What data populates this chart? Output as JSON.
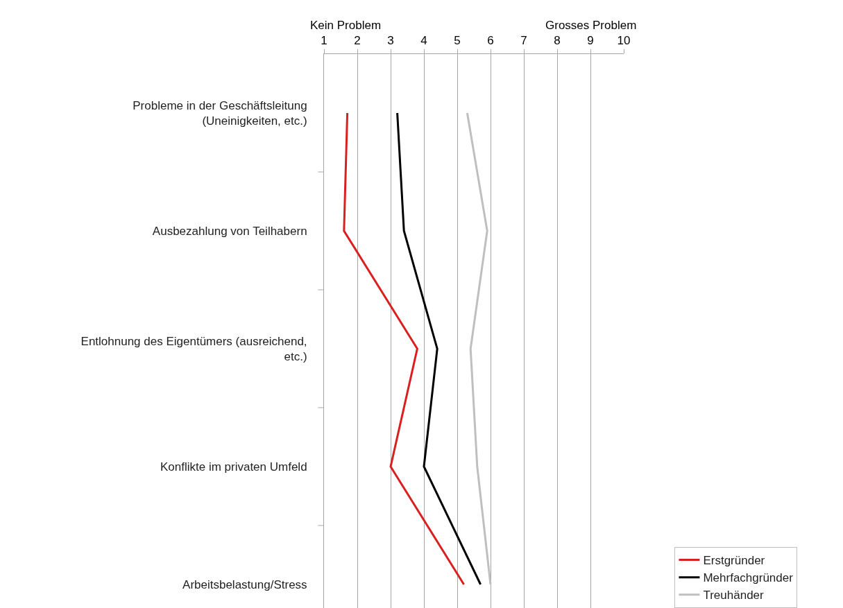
{
  "chart_data": {
    "type": "line",
    "orientation": "horizontal",
    "categories": [
      "Probleme in der Geschäftsleitung (Uneinigkeiten, etc.)",
      "Ausbezahlung von Teilhabern",
      "Entlohnung des Eigentümers (ausreichend, etc.)",
      "Konflikte im privaten Umfeld",
      "Arbeitsbelastung/Stress"
    ],
    "series": [
      {
        "name": "Erstgründer",
        "color": "#d9201f",
        "values": [
          1.7,
          1.6,
          3.8,
          3.0,
          5.2
        ]
      },
      {
        "name": "Mehrfachgründer",
        "color": "#000000",
        "values": [
          3.2,
          3.4,
          4.4,
          4.0,
          5.7
        ]
      },
      {
        "name": "Treuhänder",
        "color": "#bfbfbf",
        "values": [
          5.3,
          5.9,
          5.4,
          5.6,
          6.0
        ]
      }
    ],
    "xlim": [
      1,
      10
    ],
    "xticks": [
      1,
      2,
      3,
      4,
      5,
      6,
      7,
      8,
      9,
      10
    ],
    "annotations": [
      "Kein Problem",
      "Grosses Problem"
    ],
    "grid": "x",
    "legend": "bottom right",
    "marker": "none",
    "line_style": "solid"
  }
}
